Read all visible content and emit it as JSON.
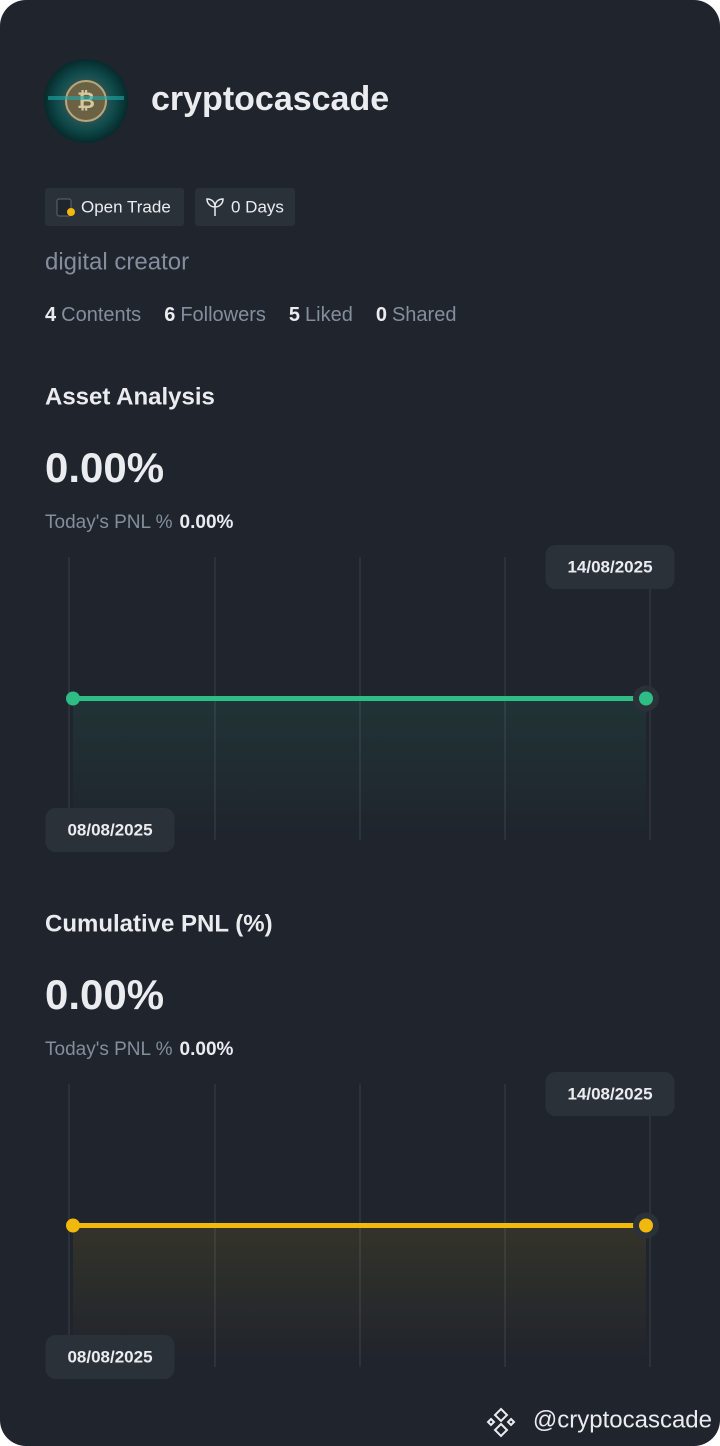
{
  "profile": {
    "username": "cryptocascade",
    "badges": [
      "Open Trade",
      "0 Days"
    ],
    "bio": "digital creator",
    "stats": [
      {
        "value": "4",
        "label": "Contents"
      },
      {
        "value": "6",
        "label": "Followers"
      },
      {
        "value": "5",
        "label": "Liked"
      },
      {
        "value": "0",
        "label": "Shared"
      }
    ]
  },
  "charts": [
    {
      "title": "Asset Analysis",
      "value": "0.00%",
      "todays_pnl_label": "Today's PNL %",
      "todays_pnl_value": "0.00%",
      "chart_data": {
        "type": "line",
        "x": [
          "08/08/2025",
          "14/08/2025"
        ],
        "values": [
          0,
          0
        ],
        "color": "#2ebd85"
      }
    },
    {
      "title": "Cumulative PNL (%)",
      "value": "0.00%",
      "todays_pnl_label": "Today's PNL %",
      "todays_pnl_value": "0.00%",
      "chart_data": {
        "type": "line",
        "x": [
          "08/08/2025",
          "14/08/2025"
        ],
        "values": [
          0,
          0
        ],
        "color": "#f0b90b"
      }
    }
  ],
  "footer": {
    "handle": "@cryptocascade"
  }
}
